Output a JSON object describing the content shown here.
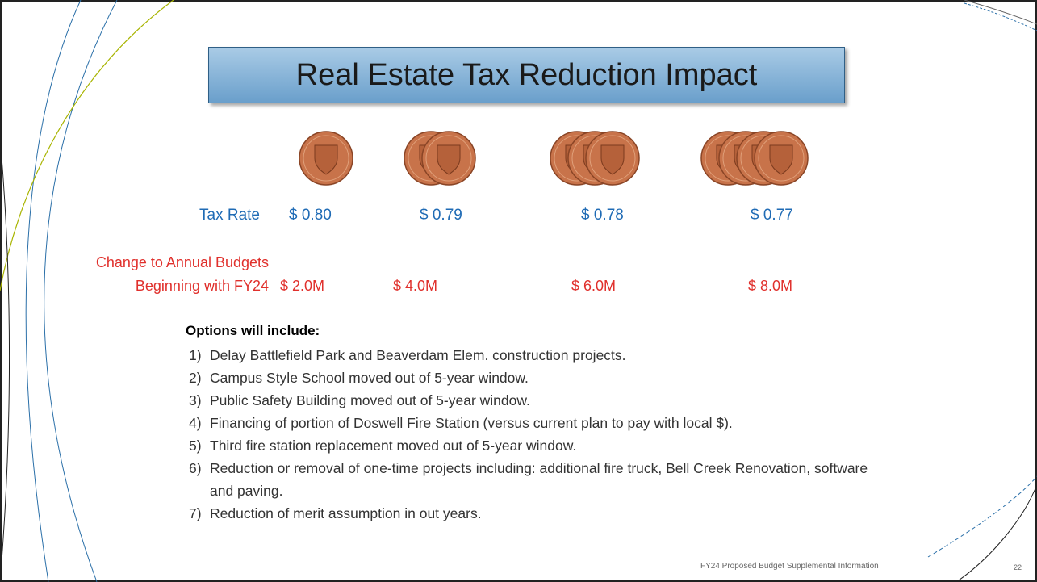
{
  "title": "Real Estate Tax Reduction Impact",
  "tax_rate_label": "Tax Rate",
  "tax_rates": [
    "$ 0.80",
    "$ 0.79",
    "$ 0.78",
    "$ 0.77"
  ],
  "change_label": [
    "Change to Annual Budgets",
    "Beginning with FY24"
  ],
  "changes": [
    "$ 2.0M",
    "$ 4.0M",
    "$ 6.0M",
    "$ 8.0M"
  ],
  "options": {
    "heading": "Options will include:",
    "items": [
      {
        "number": "1)",
        "text": "Delay Battlefield Park and Beaverdam Elem. construction projects."
      },
      {
        "number": "2)",
        "text": "Campus Style School moved out of 5-year window."
      },
      {
        "number": "3)",
        "text": "Public Safety Building moved out of 5-year window."
      },
      {
        "number": "4)",
        "text": "Financing of portion of Doswell Fire Station (versus current plan to pay with local $)."
      },
      {
        "number": "5)",
        "text": "Third fire station replacement moved out of 5-year window."
      },
      {
        "number": "6)",
        "text": "Reduction or removal of one-time projects including: additional fire truck, Bell Creek Renovation, software and paving."
      },
      {
        "number": "7)",
        "text": "Reduction of merit assumption in out years."
      }
    ]
  },
  "footer": "FY24 Proposed Budget Supplemental Information",
  "page_number": "22"
}
